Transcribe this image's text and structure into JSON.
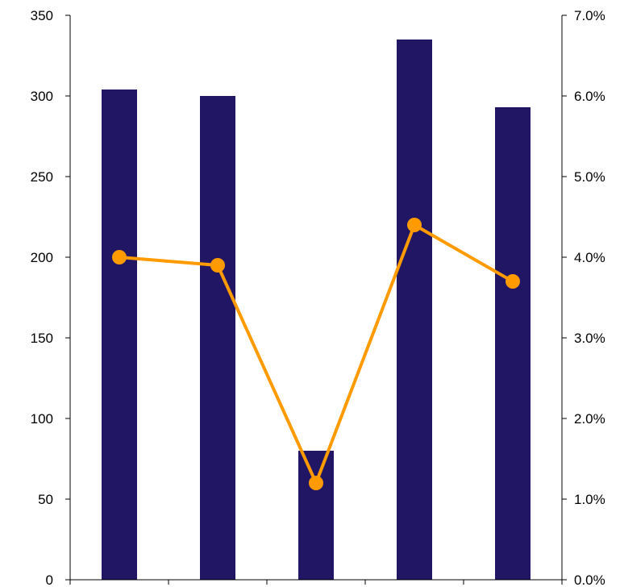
{
  "chart_data": {
    "type": "bar",
    "categories": [
      "",
      "",
      "",
      "",
      ""
    ],
    "series": [
      {
        "type": "bar",
        "axis": "left",
        "color": "#201664",
        "values": [
          304,
          300,
          80,
          335,
          293
        ]
      },
      {
        "type": "line",
        "axis": "right",
        "color": "#FF9B00",
        "values": [
          4.0,
          3.9,
          1.2,
          4.4,
          3.7
        ]
      }
    ],
    "y_left": {
      "ylim": [
        0,
        350
      ],
      "ticks": [
        0,
        50,
        100,
        150,
        200,
        250,
        300,
        350
      ]
    },
    "y_right": {
      "ylim": [
        0,
        7
      ],
      "ticks": [
        0,
        1,
        2,
        3,
        4,
        5,
        6,
        7
      ],
      "tick_labels": [
        "0.0%",
        "1.0%",
        "2.0%",
        "3.0%",
        "4.0%",
        "5.0%",
        "6.0%",
        "7.0%"
      ]
    },
    "title": "",
    "xlabel": "",
    "ylabel": "",
    "grid": false,
    "legend": "none"
  }
}
